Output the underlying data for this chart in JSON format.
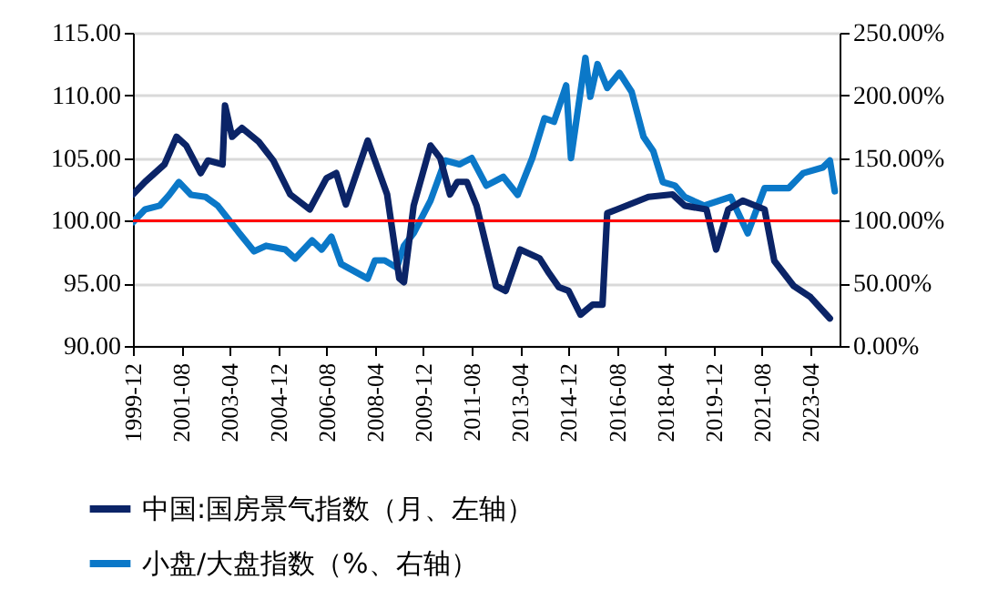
{
  "chart_data": {
    "type": "line",
    "xlim": [
      "1999-12",
      "2024-04"
    ],
    "xticks": [
      "1999-12",
      "2001-08",
      "2003-04",
      "2004-12",
      "2006-08",
      "2008-04",
      "2009-12",
      "2011-08",
      "2013-04",
      "2014-12",
      "2016-08",
      "2018-04",
      "2019-12",
      "2021-08",
      "2023-04"
    ],
    "ylim": [
      90,
      115
    ],
    "yticks": [
      {
        "value": 90,
        "label": "90.00"
      },
      {
        "value": 95,
        "label": "95.00"
      },
      {
        "value": 100,
        "label": "100.00"
      },
      {
        "value": 105,
        "label": "105.00"
      },
      {
        "value": 110,
        "label": "110.00"
      },
      {
        "value": 115,
        "label": "115.00"
      }
    ],
    "y2lim": [
      0,
      250
    ],
    "y2ticks": [
      {
        "value": 0,
        "label": "0.00%"
      },
      {
        "value": 50,
        "label": "50.00%"
      },
      {
        "value": 100,
        "label": "100.00%"
      },
      {
        "value": 150,
        "label": "150.00%"
      },
      {
        "value": 200,
        "label": "200.00%"
      },
      {
        "value": 250,
        "label": "250.00%"
      }
    ],
    "grid": "y",
    "legend": "bottom",
    "ref_lines": [
      {
        "axis": "y",
        "value": 100,
        "color": "#ff0000"
      }
    ],
    "series": [
      {
        "name": "中国:国房景气指数（月、左轴）",
        "color": "#0b2467",
        "x": [
          "1999-12",
          "2000-05",
          "2001-01",
          "2001-06",
          "2001-10",
          "2002-04",
          "2002-07",
          "2003-01",
          "2003-02",
          "2003-05",
          "2003-09",
          "2004-04",
          "2004-10",
          "2005-05",
          "2006-01",
          "2006-08",
          "2006-12",
          "2007-04",
          "2008-01",
          "2008-04",
          "2008-09",
          "2009-02",
          "2009-04",
          "2009-08",
          "2010-03",
          "2010-07",
          "2010-11",
          "2011-02",
          "2011-06",
          "2011-10",
          "2012-06",
          "2012-10",
          "2013-04",
          "2013-12",
          "2014-04",
          "2014-08",
          "2014-12",
          "2015-05",
          "2015-10",
          "2016-02",
          "2016-04",
          "2016-08",
          "2017-09",
          "2018-07",
          "2018-12",
          "2019-09",
          "2020-01",
          "2020-06",
          "2020-12",
          "2021-09",
          "2022-01",
          "2022-09",
          "2023-04",
          "2023-12"
        ],
        "values": [
          102.1,
          103.1,
          104.5,
          106.7,
          106,
          103.8,
          104.8,
          104.5,
          109.2,
          106.7,
          107.4,
          106.3,
          104.8,
          102.1,
          100.9,
          103.4,
          103.8,
          101.3,
          106.4,
          104.8,
          102.1,
          95.4,
          95.1,
          101.2,
          106,
          105,
          102.1,
          103.1,
          103.1,
          101.2,
          94.8,
          94.4,
          97.7,
          97,
          95.8,
          94.7,
          94.4,
          92.5,
          93.3,
          93.3,
          100.6,
          100.9,
          101.9,
          102.1,
          101.2,
          100.9,
          97.7,
          100.9,
          101.6,
          100.9,
          96.8,
          94.8,
          93.9,
          92.2
        ]
      },
      {
        "name": "小盘/大盘指数（%、右轴）",
        "color": "#0b78c8",
        "axis": "y2",
        "x": [
          "1999-12",
          "2000-05",
          "2000-11",
          "2001-03",
          "2001-07",
          "2001-12",
          "2002-06",
          "2002-11",
          "2003-05",
          "2003-08",
          "2004-02",
          "2004-07",
          "2005-03",
          "2005-07",
          "2006-02",
          "2006-06",
          "2006-10",
          "2007-02",
          "2008-01",
          "2008-04",
          "2008-08",
          "2009-01",
          "2009-04",
          "2009-08",
          "2010-03",
          "2010-09",
          "2011-03",
          "2011-08",
          "2012-02",
          "2012-09",
          "2013-03",
          "2013-09",
          "2014-02",
          "2014-06",
          "2014-11",
          "2015-01",
          "2015-07",
          "2015-09",
          "2015-12",
          "2016-04",
          "2016-09",
          "2017-02",
          "2017-07",
          "2017-11",
          "2018-03",
          "2018-08",
          "2018-12",
          "2019-08",
          "2020-07",
          "2021-02",
          "2021-09",
          "2022-07",
          "2023-01",
          "2023-09",
          "2023-12",
          "2024-02"
        ],
        "values": [
          98.8,
          109,
          112,
          120.6,
          130.8,
          120.6,
          119,
          112,
          97.4,
          90,
          75.6,
          80,
          77,
          69.8,
          84.3,
          77,
          87.2,
          65.4,
          53.8,
          68.3,
          68.3,
          62.5,
          80,
          90,
          116,
          148,
          145,
          150,
          128,
          135,
          120.6,
          150,
          181.7,
          179,
          208,
          150,
          230,
          199,
          225,
          206,
          218,
          203,
          167,
          155.5,
          130.8,
          128,
          119,
          112,
          119,
          90,
          126,
          126,
          138,
          142.4,
          148,
          123.5
        ]
      }
    ]
  }
}
